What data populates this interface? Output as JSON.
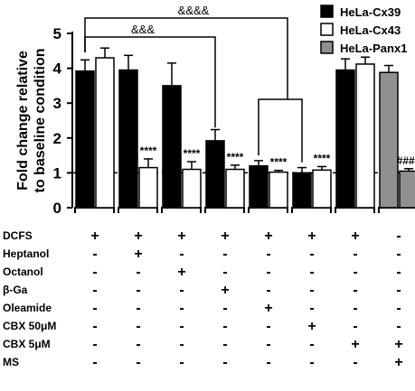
{
  "chart_data": {
    "type": "bar",
    "ylabel": "Fold change relative\nto baseline condition",
    "ylim": [
      0,
      5
    ],
    "yticks": [
      "0",
      "1",
      "2",
      "3",
      "4",
      "5"
    ],
    "baseline_value": 1,
    "series": [
      {
        "name": "HeLa-Cx39",
        "color": "#000000"
      },
      {
        "name": "HeLa-Cx43",
        "color": "#ffffff"
      },
      {
        "name": "HeLa-Panx1",
        "color": "#909090"
      }
    ],
    "groups": [
      {
        "bars": [
          {
            "series": 0,
            "value": 3.92,
            "err": 0.32
          },
          {
            "series": 1,
            "value": 4.3,
            "err": 0.28
          }
        ],
        "sig": [
          "",
          ""
        ]
      },
      {
        "bars": [
          {
            "series": 0,
            "value": 3.95,
            "err": 0.42
          },
          {
            "series": 1,
            "value": 1.15,
            "err": 0.25
          }
        ],
        "sig": [
          "",
          "****"
        ]
      },
      {
        "bars": [
          {
            "series": 0,
            "value": 3.5,
            "err": 0.65
          },
          {
            "series": 1,
            "value": 1.1,
            "err": 0.22
          }
        ],
        "sig": [
          "",
          "****"
        ]
      },
      {
        "bars": [
          {
            "series": 0,
            "value": 1.92,
            "err": 0.32
          },
          {
            "series": 1,
            "value": 1.1,
            "err": 0.12
          }
        ],
        "sig": [
          "",
          "****"
        ]
      },
      {
        "bars": [
          {
            "series": 0,
            "value": 1.2,
            "err": 0.15
          },
          {
            "series": 1,
            "value": 1.02,
            "err": 0.05
          }
        ],
        "sig": [
          "",
          "****"
        ]
      },
      {
        "bars": [
          {
            "series": 0,
            "value": 1.0,
            "err": 0.15
          },
          {
            "series": 1,
            "value": 1.08,
            "err": 0.1
          }
        ],
        "sig": [
          "",
          "****"
        ]
      },
      {
        "bars": [
          {
            "series": 0,
            "value": 3.95,
            "err": 0.32
          },
          {
            "series": 1,
            "value": 4.12,
            "err": 0.2
          }
        ],
        "sig": [
          "",
          ""
        ]
      },
      {
        "bars": [
          {
            "series": 2,
            "value": 3.88,
            "err": 0.2
          },
          {
            "series": 2,
            "value": 1.05,
            "err": 0.07
          }
        ],
        "sig": [
          "",
          "####"
        ]
      }
    ],
    "brackets": [
      {
        "label": "&&&&",
        "from_group": 0,
        "to_group": 4
      },
      {
        "label": "&&&",
        "from_group": 0,
        "to_group": 3
      }
    ],
    "treatment_table": [
      {
        "label": "DCFS",
        "values": [
          "+",
          "+",
          "+",
          "+",
          "+",
          "+",
          "+",
          "-"
        ]
      },
      {
        "label": "Heptanol",
        "values": [
          "-",
          "+",
          "-",
          "-",
          "-",
          "-",
          "-",
          "-"
        ]
      },
      {
        "label": "Octanol",
        "values": [
          "-",
          "-",
          "+",
          "-",
          "-",
          "-",
          "-",
          "-"
        ]
      },
      {
        "label": "β-Ga",
        "values": [
          "-",
          "-",
          "-",
          "+",
          "-",
          "-",
          "-",
          "-"
        ]
      },
      {
        "label": "Oleamide",
        "values": [
          "-",
          "-",
          "-",
          "-",
          "+",
          "-",
          "-",
          "-"
        ]
      },
      {
        "label": "CBX 50μM",
        "values": [
          "-",
          "-",
          "-",
          "-",
          "-",
          "+",
          "-",
          "-"
        ]
      },
      {
        "label": "CBX 5μM",
        "values": [
          "-",
          "-",
          "-",
          "-",
          "-",
          "-",
          "+",
          "+"
        ]
      },
      {
        "label": "MS",
        "values": [
          "-",
          "-",
          "-",
          "-",
          "-",
          "-",
          "-",
          "+"
        ]
      }
    ]
  }
}
